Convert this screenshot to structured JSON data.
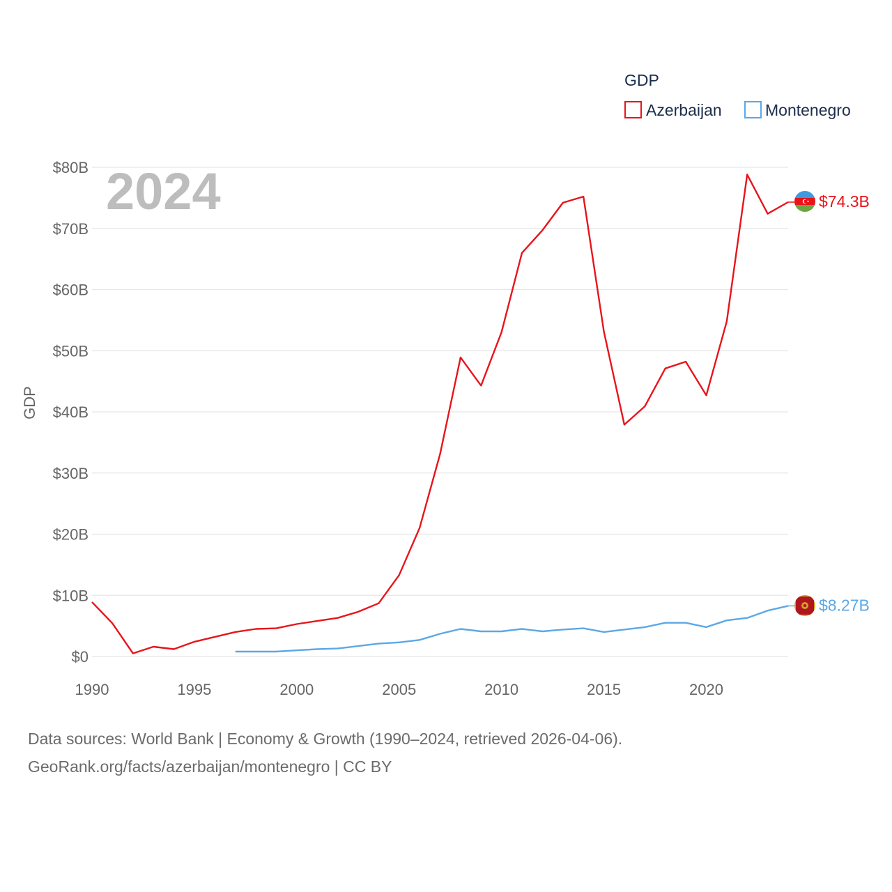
{
  "chart_data": {
    "type": "line",
    "year_label": "2024",
    "ylabel": "GDP",
    "ylim": [
      0,
      80
    ],
    "xlim": [
      1990,
      2024
    ],
    "y_ticks": [
      {
        "value": 0,
        "label": "$0"
      },
      {
        "value": 10,
        "label": "$10B"
      },
      {
        "value": 20,
        "label": "$20B"
      },
      {
        "value": 30,
        "label": "$30B"
      },
      {
        "value": 40,
        "label": "$40B"
      },
      {
        "value": 50,
        "label": "$50B"
      },
      {
        "value": 60,
        "label": "$60B"
      },
      {
        "value": 70,
        "label": "$70B"
      },
      {
        "value": 80,
        "label": "$80B"
      }
    ],
    "x_ticks": [
      {
        "value": 1990,
        "label": "1990"
      },
      {
        "value": 1995,
        "label": "1995"
      },
      {
        "value": 2000,
        "label": "2000"
      },
      {
        "value": 2005,
        "label": "2005"
      },
      {
        "value": 2010,
        "label": "2010"
      },
      {
        "value": 2015,
        "label": "2015"
      },
      {
        "value": 2020,
        "label": "2020"
      }
    ],
    "legend": {
      "title": "GDP",
      "entries": [
        {
          "name": "Azerbaijan",
          "color": "#e8141b"
        },
        {
          "name": "Montenegro",
          "color": "#5ca8e6"
        }
      ]
    },
    "series": [
      {
        "name": "Azerbaijan",
        "color": "#e8141b",
        "end_label": "$74.3B",
        "x": [
          1990,
          1991,
          1992,
          1993,
          1994,
          1995,
          1996,
          1997,
          1998,
          1999,
          2000,
          2001,
          2002,
          2003,
          2004,
          2005,
          2006,
          2007,
          2008,
          2009,
          2010,
          2011,
          2012,
          2013,
          2014,
          2015,
          2016,
          2017,
          2018,
          2019,
          2020,
          2021,
          2022,
          2023,
          2024
        ],
        "values": [
          8.9,
          5.4,
          0.5,
          1.6,
          1.2,
          2.4,
          3.2,
          4.0,
          4.5,
          4.6,
          5.3,
          5.8,
          6.3,
          7.3,
          8.7,
          13.3,
          21.0,
          33.1,
          48.9,
          44.3,
          53.0,
          66.0,
          69.7,
          74.2,
          75.2,
          53.1,
          37.9,
          40.9,
          47.1,
          48.2,
          42.7,
          54.8,
          78.8,
          72.4,
          74.3
        ]
      },
      {
        "name": "Montenegro",
        "color": "#5ca8e6",
        "end_label": "$8.27B",
        "x": [
          1997,
          1998,
          1999,
          2000,
          2001,
          2002,
          2003,
          2004,
          2005,
          2006,
          2007,
          2008,
          2009,
          2010,
          2011,
          2012,
          2013,
          2014,
          2015,
          2016,
          2017,
          2018,
          2019,
          2020,
          2021,
          2022,
          2023,
          2024
        ],
        "values": [
          0.8,
          0.8,
          0.8,
          1.0,
          1.2,
          1.3,
          1.7,
          2.1,
          2.3,
          2.7,
          3.7,
          4.5,
          4.1,
          4.1,
          4.5,
          4.1,
          4.4,
          4.6,
          4.0,
          4.4,
          4.8,
          5.5,
          5.5,
          4.8,
          5.9,
          6.3,
          7.5,
          8.27
        ]
      }
    ]
  },
  "source": {
    "line1": "Data sources: World Bank | Economy & Growth (1990–2024, retrieved 2026-04-06).",
    "line2": "GeoRank.org/facts/azerbaijan/montenegro | CC BY"
  }
}
